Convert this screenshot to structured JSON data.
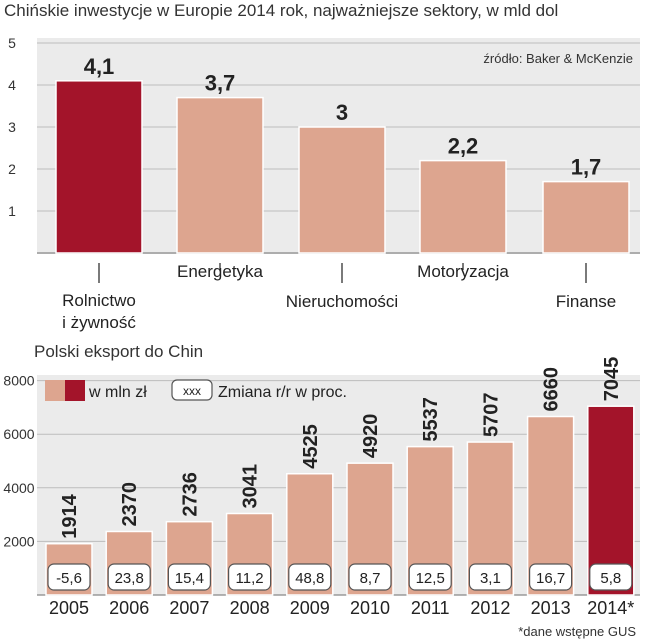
{
  "colors": {
    "accent": "#A3142A",
    "base": "#DDA58F",
    "panel": "#EBEBEB",
    "grid": "#BDBDBD"
  },
  "top": {
    "title": "Chińskie inwestycje w Europie 2014 rok, najważniejsze sektory, w mld dol",
    "source": "źródło: Baker & McKenzie",
    "y_ticks": [
      "1",
      "2",
      "3",
      "4",
      "5"
    ],
    "value_labels": [
      "4,1",
      "3,7",
      "3",
      "2,2",
      "1,7"
    ],
    "categories": [
      {
        "line1": "Rolnictwo",
        "line2": "i żywność"
      },
      {
        "line1": "Energetyka",
        "line2": ""
      },
      {
        "line1": "Nieruchomości",
        "line2": ""
      },
      {
        "line1": "Motoryzacja",
        "line2": ""
      },
      {
        "line1": "Finanse",
        "line2": ""
      }
    ]
  },
  "bottom": {
    "title": "Polski eksport do Chin",
    "legend_value": "w mln zł",
    "legend_change_box": "xxx",
    "legend_change": "Zmiana r/r w proc.",
    "y_ticks": [
      "2000",
      "4000",
      "6000",
      "8000"
    ],
    "years": [
      "2005",
      "2006",
      "2007",
      "2008",
      "2009",
      "2010",
      "2011",
      "2012",
      "2013",
      "2014*"
    ],
    "value_labels": [
      "1914",
      "2370",
      "2736",
      "3041",
      "4525",
      "4920",
      "5537",
      "5707",
      "6660",
      "7045"
    ],
    "changes": [
      "-5,6",
      "23,8",
      "15,4",
      "11,2",
      "48,8",
      "8,7",
      "12,5",
      "3,1",
      "16,7",
      "5,8"
    ],
    "footnote": "*dane wstępne GUS"
  },
  "chart_data": [
    {
      "type": "bar",
      "title": "Chińskie inwestycje w Europie 2014 rok, najważniejsze sektory, w mld dol",
      "categories": [
        "Rolnictwo i żywność",
        "Energetyka",
        "Nieruchomości",
        "Motoryzacja",
        "Finanse"
      ],
      "values": [
        4.1,
        3.7,
        3.0,
        2.2,
        1.7
      ],
      "ylim": [
        0,
        5
      ],
      "grid": true,
      "highlight_index": 0
    },
    {
      "type": "bar",
      "title": "Polski eksport do Chin",
      "categories": [
        "2005",
        "2006",
        "2007",
        "2008",
        "2009",
        "2010",
        "2011",
        "2012",
        "2013",
        "2014*"
      ],
      "series": [
        {
          "name": "w mln zł",
          "values": [
            1914,
            2370,
            2736,
            3041,
            4525,
            4920,
            5537,
            5707,
            6660,
            7045
          ]
        },
        {
          "name": "Zmiana r/r w proc.",
          "values": [
            -5.6,
            23.8,
            15.4,
            11.2,
            48.8,
            8.7,
            12.5,
            3.1,
            16.7,
            5.8
          ]
        }
      ],
      "ylim": [
        0,
        8000
      ],
      "grid": true,
      "highlight_index": 9
    }
  ]
}
